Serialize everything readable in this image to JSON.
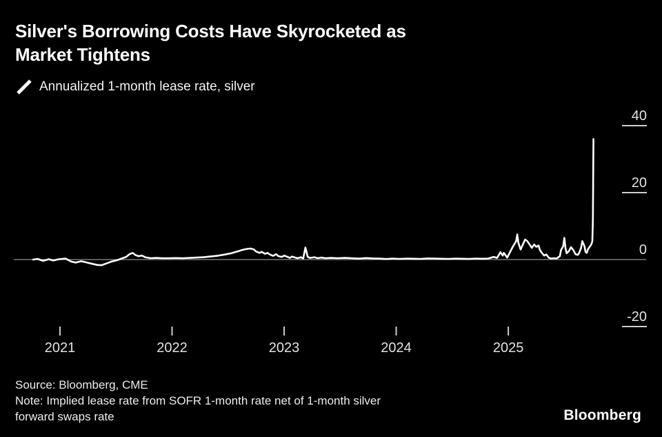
{
  "header": {
    "title": "Silver's Borrowing Costs Have Skyrocketed as Market Tightens",
    "title_lines": [
      "Silver's Borrowing Costs Have Skyrocketed as",
      "Market Tightens"
    ]
  },
  "legend": {
    "icon": "diagonal-line-swatch",
    "label": "Annualized 1-month lease rate, silver",
    "series_color": "#ffffff"
  },
  "chart_data": {
    "type": "line",
    "title": "Silver's Borrowing Costs Have Skyrocketed as Market Tightens",
    "xlabel": "",
    "ylabel": "",
    "legend_position": "top-left",
    "grid": false,
    "background": "#000000",
    "baseline_color": "#8f8f8f",
    "tick_color": "#cfcfcf",
    "label_color": "#e2e2e2",
    "xlim": [
      2020.588,
      2026.23
    ],
    "ylim": [
      -29.7,
      46.6
    ],
    "yticks": [
      {
        "value": 40,
        "label": "40"
      },
      {
        "value": 20,
        "label": "20"
      },
      {
        "value": 0,
        "label": "0"
      },
      {
        "value": -20,
        "label": "-20"
      }
    ],
    "xticks": [
      {
        "value": 2021,
        "label": "2021"
      },
      {
        "value": 2022,
        "label": "2022"
      },
      {
        "value": 2023,
        "label": "2023"
      },
      {
        "value": 2024,
        "label": "2024"
      },
      {
        "value": 2025,
        "label": "2025"
      }
    ],
    "series": [
      {
        "name": "Annualized 1-month lease rate, silver",
        "color": "#ffffff",
        "points": [
          [
            2020.76,
            0.0
          ],
          [
            2020.8,
            0.2
          ],
          [
            2020.85,
            -0.4
          ],
          [
            2020.9,
            0.1
          ],
          [
            2020.94,
            -0.3
          ],
          [
            2020.99,
            0.1
          ],
          [
            2021.05,
            0.3
          ],
          [
            2021.1,
            -0.6
          ],
          [
            2021.14,
            -0.9
          ],
          [
            2021.19,
            -0.5
          ],
          [
            2021.23,
            -0.8
          ],
          [
            2021.28,
            -1.2
          ],
          [
            2021.33,
            -1.6
          ],
          [
            2021.37,
            -1.7
          ],
          [
            2021.42,
            -1.1
          ],
          [
            2021.46,
            -0.6
          ],
          [
            2021.51,
            -0.2
          ],
          [
            2021.55,
            0.3
          ],
          [
            2021.59,
            0.8
          ],
          [
            2021.62,
            1.6
          ],
          [
            2021.65,
            2.0
          ],
          [
            2021.67,
            1.4
          ],
          [
            2021.7,
            1.0
          ],
          [
            2021.73,
            1.2
          ],
          [
            2021.76,
            0.7
          ],
          [
            2021.81,
            0.4
          ],
          [
            2021.86,
            0.5
          ],
          [
            2021.91,
            0.4
          ],
          [
            2021.97,
            0.4
          ],
          [
            2022.03,
            0.45
          ],
          [
            2022.1,
            0.4
          ],
          [
            2022.16,
            0.5
          ],
          [
            2022.22,
            0.6
          ],
          [
            2022.28,
            0.7
          ],
          [
            2022.34,
            0.9
          ],
          [
            2022.4,
            1.1
          ],
          [
            2022.47,
            1.5
          ],
          [
            2022.53,
            1.9
          ],
          [
            2022.59,
            2.5
          ],
          [
            2022.63,
            2.9
          ],
          [
            2022.67,
            3.2
          ],
          [
            2022.7,
            3.3
          ],
          [
            2022.73,
            3.0
          ],
          [
            2022.75,
            2.4
          ],
          [
            2022.78,
            2.0
          ],
          [
            2022.8,
            2.3
          ],
          [
            2022.83,
            1.7
          ],
          [
            2022.85,
            2.0
          ],
          [
            2022.88,
            1.4
          ],
          [
            2022.9,
            1.1
          ],
          [
            2022.93,
            1.6
          ],
          [
            2022.95,
            1.0
          ],
          [
            2022.98,
            0.8
          ],
          [
            2023.0,
            1.2
          ],
          [
            2023.03,
            0.8
          ],
          [
            2023.05,
            0.5
          ],
          [
            2023.07,
            0.9
          ],
          [
            2023.1,
            0.6
          ],
          [
            2023.12,
            0.4
          ],
          [
            2023.15,
            0.7
          ],
          [
            2023.17,
            0.3
          ],
          [
            2023.19,
            3.6
          ],
          [
            2023.21,
            0.8
          ],
          [
            2023.23,
            0.5
          ],
          [
            2023.27,
            0.7
          ],
          [
            2023.3,
            0.4
          ],
          [
            2023.33,
            0.6
          ],
          [
            2023.37,
            0.4
          ],
          [
            2023.42,
            0.5
          ],
          [
            2023.48,
            0.4
          ],
          [
            2023.54,
            0.5
          ],
          [
            2023.6,
            0.4
          ],
          [
            2023.67,
            0.3
          ],
          [
            2023.73,
            0.45
          ],
          [
            2023.79,
            0.35
          ],
          [
            2023.85,
            0.3
          ],
          [
            2023.91,
            0.15
          ],
          [
            2023.97,
            0.3
          ],
          [
            2024.03,
            0.2
          ],
          [
            2024.1,
            0.3
          ],
          [
            2024.16,
            0.25
          ],
          [
            2024.22,
            0.2
          ],
          [
            2024.28,
            0.35
          ],
          [
            2024.34,
            0.3
          ],
          [
            2024.4,
            0.25
          ],
          [
            2024.47,
            0.2
          ],
          [
            2024.53,
            0.3
          ],
          [
            2024.59,
            0.25
          ],
          [
            2024.65,
            0.2
          ],
          [
            2024.71,
            0.3
          ],
          [
            2024.77,
            0.25
          ],
          [
            2024.82,
            0.3
          ],
          [
            2024.87,
            0.8
          ],
          [
            2024.9,
            0.5
          ],
          [
            2024.93,
            2.2
          ],
          [
            2024.95,
            1.2
          ],
          [
            2024.96,
            2.0
          ],
          [
            2024.99,
            0.6
          ],
          [
            2025.02,
            2.5
          ],
          [
            2025.04,
            3.8
          ],
          [
            2025.07,
            5.5
          ],
          [
            2025.08,
            7.5
          ],
          [
            2025.09,
            5.0
          ],
          [
            2025.11,
            3.0
          ],
          [
            2025.13,
            4.5
          ],
          [
            2025.15,
            6.0
          ],
          [
            2025.17,
            5.5
          ],
          [
            2025.19,
            4.5
          ],
          [
            2025.21,
            3.5
          ],
          [
            2025.23,
            4.5
          ],
          [
            2025.25,
            3.8
          ],
          [
            2025.27,
            4.2
          ],
          [
            2025.28,
            3.0
          ],
          [
            2025.3,
            2.0
          ],
          [
            2025.32,
            1.2
          ],
          [
            2025.34,
            1.5
          ],
          [
            2025.36,
            0.6
          ],
          [
            2025.38,
            0.3
          ],
          [
            2025.41,
            0.4
          ],
          [
            2025.43,
            0.3
          ],
          [
            2025.46,
            1.0
          ],
          [
            2025.47,
            2.8
          ],
          [
            2025.49,
            4.0
          ],
          [
            2025.5,
            6.5
          ],
          [
            2025.51,
            3.5
          ],
          [
            2025.52,
            1.9
          ],
          [
            2025.54,
            2.5
          ],
          [
            2025.56,
            3.7
          ],
          [
            2025.58,
            2.8
          ],
          [
            2025.6,
            1.6
          ],
          [
            2025.62,
            1.4
          ],
          [
            2025.63,
            1.8
          ],
          [
            2025.65,
            3.5
          ],
          [
            2025.66,
            5.5
          ],
          [
            2025.68,
            4.0
          ],
          [
            2025.69,
            2.2
          ],
          [
            2025.7,
            2.0
          ],
          [
            2025.71,
            3.0
          ],
          [
            2025.73,
            4.0
          ],
          [
            2025.74,
            4.5
          ],
          [
            2025.75,
            5.5
          ],
          [
            2025.755,
            12.0
          ],
          [
            2025.76,
            36.0
          ]
        ]
      }
    ]
  },
  "footer": {
    "source": "Source: Bloomberg, CME",
    "note": "Note: Implied lease rate from SOFR 1-month rate net of 1-month silver forward swaps rate",
    "note_lines": [
      "Note: Implied lease rate from SOFR 1-month rate net of 1-month silver",
      "forward swaps rate"
    ],
    "brand": "Bloomberg"
  }
}
